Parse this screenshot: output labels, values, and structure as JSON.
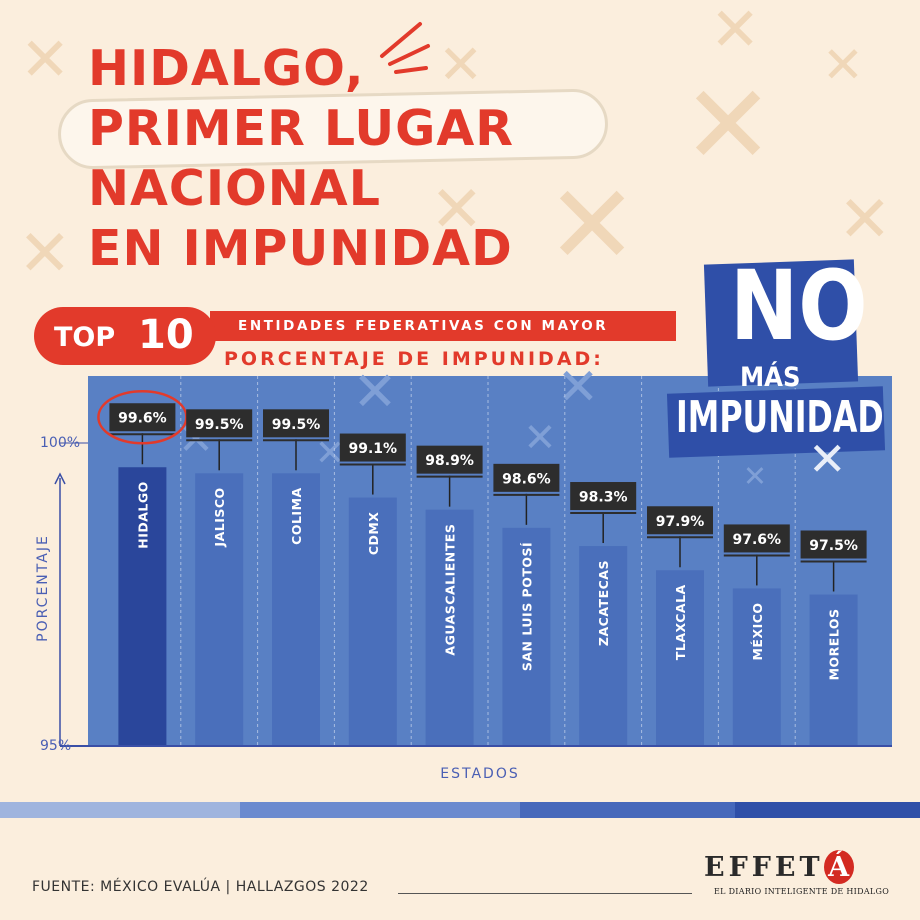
{
  "title": {
    "line1": "HIDALGO,",
    "line2": "PRIMER LUGAR",
    "line3": "NACIONAL",
    "line4": "EN IMPUNIDAD"
  },
  "badge": {
    "top_word": "TOP",
    "top_num": "10",
    "subtitle1": "ENTIDADES FEDERATIVAS CON MAYOR",
    "subtitle2": "PORCENTAJE DE IMPUNIDAD:"
  },
  "stamp": {
    "no": "NO",
    "mas": "MÁS",
    "impunidad": "IMPUNIDAD"
  },
  "chart_data": {
    "type": "bar",
    "categories": [
      "HIDALGO",
      "JALISCO",
      "COLIMA",
      "CDMX",
      "AGUASCALIENTES",
      "SAN LUIS POTOSÍ",
      "ZACATECAS",
      "TLAXCALA",
      "MÉXICO",
      "MORELOS"
    ],
    "values": [
      99.6,
      99.5,
      99.5,
      99.1,
      98.9,
      98.6,
      98.3,
      97.9,
      97.6,
      97.5
    ],
    "value_labels": [
      "99.6%",
      "99.5%",
      "99.5%",
      "99.1%",
      "98.9%",
      "98.6%",
      "98.3%",
      "97.9%",
      "97.6%",
      "97.5%"
    ],
    "xlabel": "ESTADOS",
    "ylabel": "PORCENTAJE",
    "ylim": [
      95,
      100
    ],
    "yticks": [
      "100%",
      "95%"
    ],
    "highlight": "HIDALGO",
    "colors": {
      "highlight_bar": "#2a469b",
      "bar": "#4a6fbb",
      "plot_bg": "#5980c4",
      "label_bg": "#2d2d2d",
      "accent": "#e23a2b"
    }
  },
  "footer": {
    "source": "FUENTE: MÉXICO EVALÚA | HALLAZGOS 2022",
    "logo_text": "EFFET",
    "logo_accent": "Á",
    "logo_sub": "EL DIARIO INTELIGENTE DE HIDALGO"
  }
}
